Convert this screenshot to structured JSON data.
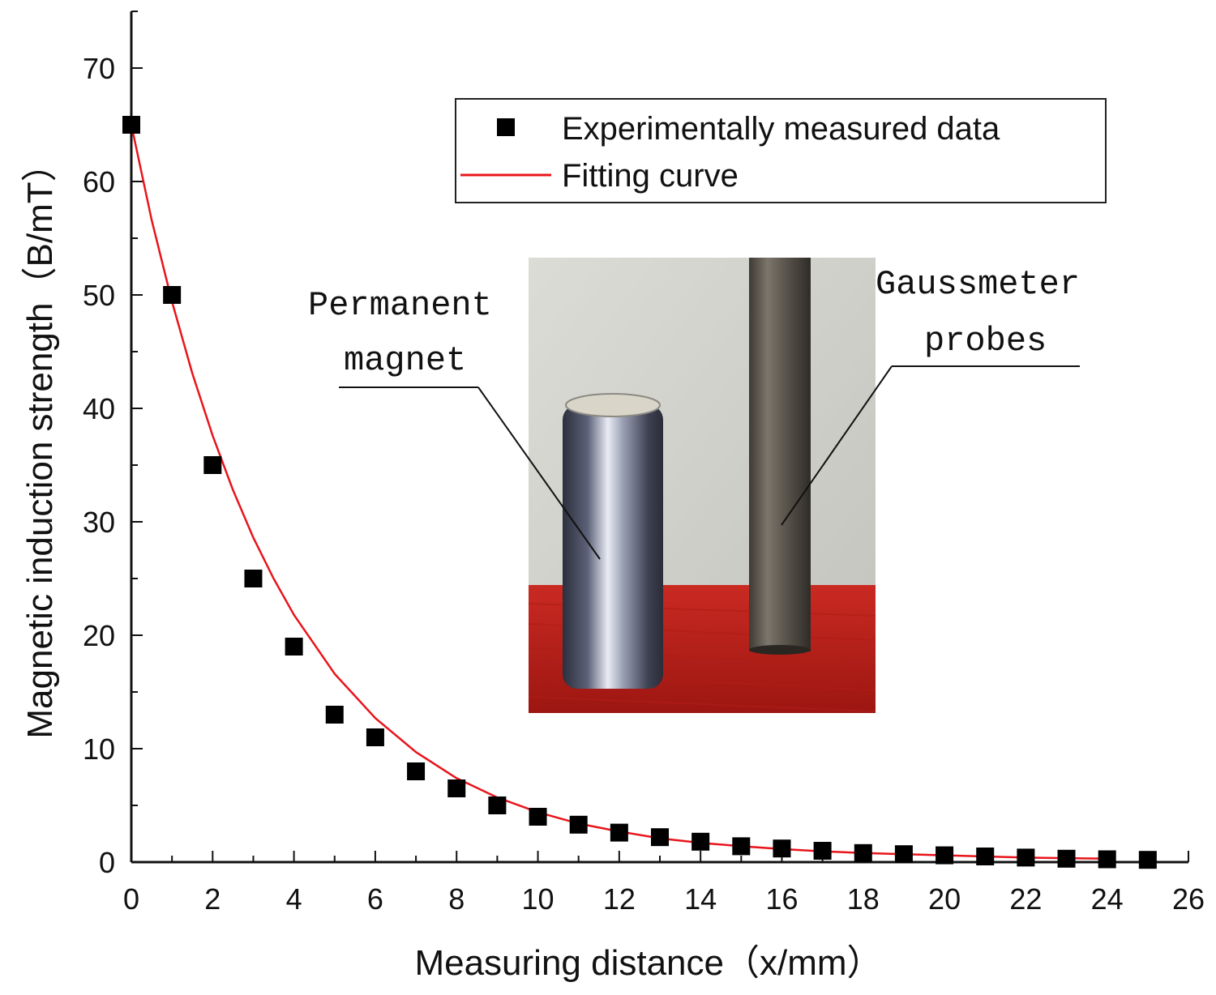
{
  "chart_data": {
    "type": "scatter",
    "title": "",
    "xlabel": "Measuring distance（x/mm）",
    "ylabel": "Magnetic induction strength（B/mT）",
    "xlim": [
      0,
      26
    ],
    "ylim": [
      0,
      75
    ],
    "xticks": [
      0,
      2,
      4,
      6,
      8,
      10,
      12,
      14,
      16,
      18,
      20,
      22,
      24,
      26
    ],
    "yticks": [
      0,
      10,
      20,
      30,
      40,
      50,
      60,
      70
    ],
    "grid": false,
    "legend_position": "top-right",
    "series": [
      {
        "name": "Experimentally measured data",
        "kind": "scatter",
        "marker": "square",
        "color": "#000000",
        "x": [
          0,
          1,
          2,
          3,
          4,
          5,
          6,
          7,
          8,
          9,
          10,
          11,
          12,
          13,
          14,
          15,
          16,
          17,
          18,
          19,
          20,
          21,
          22,
          23,
          24,
          25
        ],
        "y": [
          65,
          50,
          35,
          25,
          19,
          13,
          11,
          8,
          6.5,
          5,
          4,
          3.3,
          2.6,
          2.2,
          1.8,
          1.4,
          1.2,
          1.0,
          0.8,
          0.7,
          0.6,
          0.5,
          0.4,
          0.3,
          0.25,
          0.2
        ]
      },
      {
        "name": "Fitting curve",
        "kind": "line",
        "color": "#e8141b",
        "x": [
          0,
          0.5,
          1,
          1.5,
          2,
          2.5,
          3,
          3.5,
          4,
          5,
          6,
          7,
          8,
          9,
          10,
          11,
          12,
          13,
          14,
          15,
          16,
          17,
          18,
          19,
          20,
          21,
          22,
          23,
          24
        ],
        "y": [
          65,
          56.6,
          49.4,
          43.1,
          37.6,
          32.8,
          28.6,
          25.0,
          21.8,
          16.6,
          12.7,
          9.7,
          7.4,
          5.7,
          4.4,
          3.4,
          2.7,
          2.1,
          1.7,
          1.4,
          1.15,
          0.95,
          0.8,
          0.7,
          0.6,
          0.5,
          0.4,
          0.35,
          0.3
        ]
      }
    ],
    "inset_photo": {
      "labels": [
        "Permanent",
        "magnet",
        "Gaussmeter",
        "probes"
      ]
    }
  }
}
